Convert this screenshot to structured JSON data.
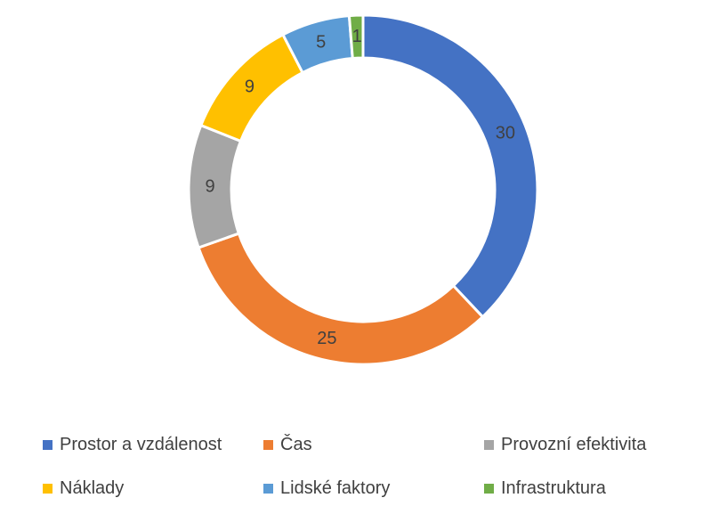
{
  "chart_data": {
    "type": "pie",
    "subtype": "donut",
    "title": "",
    "categories": [
      "Prostor a vzdálenost",
      "Čas",
      "Provozní efektivita",
      "Náklady",
      "Lidské faktory",
      "Infrastruktura"
    ],
    "values": [
      30,
      25,
      9,
      9,
      5,
      1
    ],
    "colors": [
      "#4472C4",
      "#ED7D31",
      "#A5A5A5",
      "#FFC000",
      "#5B9BD5",
      "#70AD47"
    ],
    "data_labels": [
      "30",
      "25",
      "9",
      "9",
      "5",
      "1"
    ],
    "legend_position": "bottom"
  }
}
